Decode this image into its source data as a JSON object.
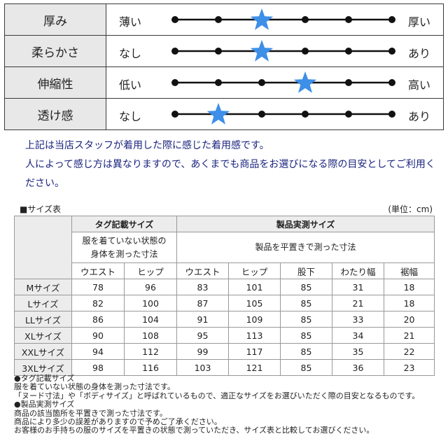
{
  "feel": {
    "rows": [
      {
        "label": "厚み",
        "low": "薄い",
        "high": "厚い",
        "level": 3
      },
      {
        "label": "柔らかさ",
        "low": "なし",
        "high": "あり",
        "level": 3
      },
      {
        "label": "伸縮性",
        "low": "低い",
        "high": "高い",
        "level": 4
      },
      {
        "label": "透け感",
        "low": "なし",
        "high": "あり",
        "level": 2
      }
    ],
    "scale_points": 6,
    "star_color": "#3d8fe8"
  },
  "note": {
    "line1": "上記は当店スタッフが着用した際に感じた着用感です。",
    "line2": "人によって感じ方は異なりますので、あくまでも商品をお選びになる際の目安としてご利用ください。"
  },
  "size": {
    "title": "■サイズ表",
    "unit": "(単位：cm)",
    "tag_header": "タグ記載サイズ",
    "actual_header": "製品実測サイズ",
    "tag_desc": "服を着ていない状態の身体を測った寸法",
    "actual_desc": "製品を平置きで測った寸法",
    "columns": [
      "ウエスト",
      "ヒップ",
      "ウエスト",
      "ヒップ",
      "股下",
      "わたり幅",
      "裾幅"
    ],
    "rows": [
      {
        "name": "Mサイズ",
        "values": [
          "78",
          "96",
          "83",
          "101",
          "85",
          "31",
          "18"
        ]
      },
      {
        "name": "Lサイズ",
        "values": [
          "82",
          "100",
          "87",
          "105",
          "85",
          "21",
          "18"
        ]
      },
      {
        "name": "LLサイズ",
        "values": [
          "86",
          "104",
          "91",
          "109",
          "85",
          "33",
          "20"
        ]
      },
      {
        "name": "XLサイズ",
        "values": [
          "90",
          "108",
          "95",
          "113",
          "85",
          "34",
          "21"
        ]
      },
      {
        "name": "XXLサイズ",
        "values": [
          "94",
          "112",
          "99",
          "117",
          "85",
          "35",
          "22"
        ]
      },
      {
        "name": "3XLサイズ",
        "values": [
          "98",
          "116",
          "103",
          "121",
          "85",
          "36",
          "23"
        ]
      }
    ]
  },
  "footnotes": [
    "●タグ記載サイズ",
    "服を着ていない状態の身体を測った寸法です。",
    "「ヌード寸法」や「ボディサイズ」と呼ばれているもので、適正なサイズをお選びいただく際の目安となるものです。",
    "●製品実測サイズ",
    "商品の該当箇所を平置きで測った寸法です。",
    "商品により多少の誤差がありますので予めご了承ください。",
    "お客様のお手持ちの服のサイズを平置きの状態で測っていただき、サイズ表と比較してお選びください。"
  ]
}
